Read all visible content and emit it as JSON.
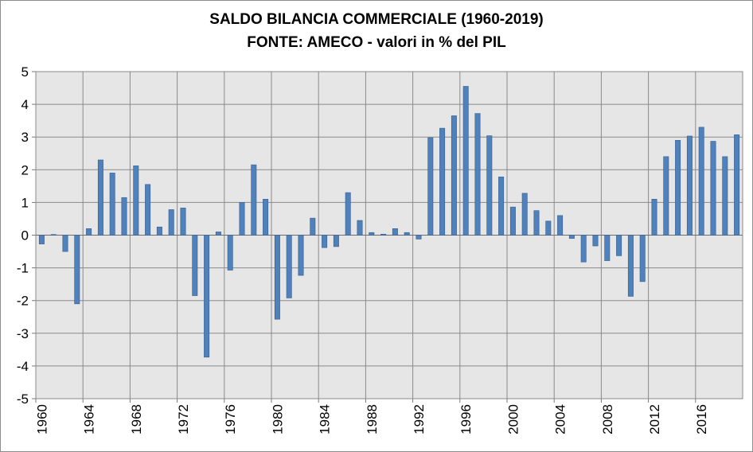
{
  "chart_data": {
    "type": "bar",
    "title": "SALDO BILANCIA COMMERCIALE (1960-2019)",
    "subtitle": "FONTE: AMECO - valori in % del PIL",
    "xlabel": "",
    "ylabel": "",
    "ylim": [
      -5,
      5
    ],
    "yticks": [
      5,
      4,
      3,
      2,
      1,
      0,
      -1,
      -2,
      -3,
      -4,
      -5
    ],
    "ytick_labels": [
      "5",
      "4",
      "3",
      "2",
      "1",
      "0",
      "-1",
      "-2",
      "-3",
      "-4",
      "-5"
    ],
    "x_tick_labels": [
      "1960",
      "1964",
      "1968",
      "1972",
      "1976",
      "1980",
      "1984",
      "1988",
      "1992",
      "1996",
      "2000",
      "2004",
      "2008",
      "2012",
      "2016"
    ],
    "grid": true,
    "legend": "none",
    "bar_color": "#4f81bd",
    "bar_edge_color": "#385d8a",
    "plot_background": "#e6e6e6",
    "categories": [
      "1960",
      "1961",
      "1962",
      "1963",
      "1964",
      "1965",
      "1966",
      "1967",
      "1968",
      "1969",
      "1970",
      "1971",
      "1972",
      "1973",
      "1974",
      "1975",
      "1976",
      "1977",
      "1978",
      "1979",
      "1980",
      "1981",
      "1982",
      "1983",
      "1984",
      "1985",
      "1986",
      "1987",
      "1988",
      "1989",
      "1990",
      "1991",
      "1992",
      "1993",
      "1994",
      "1995",
      "1996",
      "1997",
      "1998",
      "1999",
      "2000",
      "2001",
      "2002",
      "2003",
      "2004",
      "2005",
      "2006",
      "2007",
      "2008",
      "2009",
      "2010",
      "2011",
      "2012",
      "2013",
      "2014",
      "2015",
      "2016",
      "2017",
      "2018",
      "2019"
    ],
    "values": [
      -0.27,
      0.02,
      -0.5,
      -2.1,
      0.2,
      2.3,
      1.9,
      1.15,
      2.12,
      1.55,
      0.25,
      0.78,
      0.83,
      -1.85,
      -3.73,
      0.1,
      -1.07,
      1.0,
      2.15,
      1.1,
      -2.57,
      -1.92,
      -1.23,
      0.52,
      -0.38,
      -0.35,
      1.3,
      0.45,
      0.08,
      0.03,
      0.2,
      0.08,
      -0.12,
      2.98,
      3.27,
      3.65,
      4.55,
      3.72,
      3.04,
      1.78,
      0.86,
      1.28,
      0.75,
      0.43,
      0.6,
      -0.1,
      -0.82,
      -0.33,
      -0.78,
      -0.63,
      -1.87,
      -1.42,
      1.1,
      2.4,
      2.9,
      3.03,
      3.3,
      2.87,
      2.4,
      3.07
    ]
  }
}
